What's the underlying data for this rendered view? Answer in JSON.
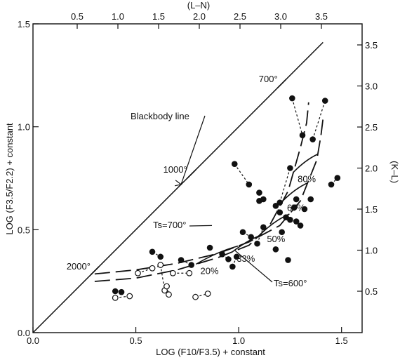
{
  "chart_data": {
    "type": "scatter",
    "x_axis": {
      "label": "LOG (F10/F3.5)  + constant",
      "range": [
        0.0,
        1.6
      ],
      "ticks": [
        "0.0",
        "0.5",
        "1.0",
        "1.5"
      ]
    },
    "y_axis": {
      "label": "LOG (F3.5/F2.2)  + constant",
      "range": [
        0.0,
        1.5
      ],
      "ticks": [
        "0.0",
        "0.5",
        "1.0",
        "1.5"
      ]
    },
    "top_axis": {
      "label": "(L–N)",
      "ticks": [
        "0.5",
        "1.0",
        "1.5",
        "2.0",
        "2.5",
        "3.0",
        "3.5"
      ]
    },
    "right_axis": {
      "label": "(K–L)",
      "ticks": [
        "0.5",
        "1.0",
        "1.5",
        "2.0",
        "2.5",
        "3.0",
        "3.5"
      ]
    },
    "grid": false,
    "blackbody_line": {
      "label": "Blackbody line",
      "points": [
        [
          0.0,
          0.0
        ],
        [
          1.41,
          1.41
        ]
      ],
      "temperature_labels": [
        {
          "label": "2000°",
          "x": 0.3,
          "y": 0.3
        },
        {
          "label": "1000°",
          "x": 0.77,
          "y": 0.77
        },
        {
          "label": "700°",
          "x": 1.21,
          "y": 1.21
        }
      ]
    },
    "model_curves": [
      {
        "label": "Ts=700°",
        "points": [
          [
            0.3,
            0.71
          ],
          [
            0.5,
            0.76
          ],
          [
            0.7,
            0.84
          ],
          [
            0.9,
            0.96
          ],
          [
            1.05,
            1.1
          ],
          [
            1.2,
            1.3
          ],
          [
            1.3,
            1.6
          ],
          [
            1.38,
            2.1
          ],
          [
            1.4,
            2.4
          ],
          [
            1.41,
            2.6
          ]
        ]
      },
      {
        "label": "Ts=600°",
        "points": [
          [
            0.3,
            0.62
          ],
          [
            0.5,
            0.66
          ],
          [
            0.7,
            0.76
          ],
          [
            0.9,
            0.91
          ],
          [
            1.05,
            1.06
          ],
          [
            1.15,
            1.3
          ],
          [
            1.24,
            1.72
          ],
          [
            1.3,
            2.25
          ],
          [
            1.33,
            2.55
          ],
          [
            1.34,
            2.8
          ]
        ]
      }
    ],
    "percent_labels": [
      {
        "label": "20%",
        "x": 0.87,
        "y": 0.93
      },
      {
        "label": "33%",
        "x": 1.0,
        "y": 1.08
      },
      {
        "label": "50%",
        "x": 1.12,
        "y": 1.32
      },
      {
        "label": "67%",
        "x": 1.26,
        "y": 1.7
      },
      {
        "label": "80%",
        "x": 1.36,
        "y": 2.05
      }
    ],
    "pointer_labels": [
      {
        "label": "Blackbody line",
        "target": [
          0.72,
          0.72
        ]
      },
      {
        "label": "Ts=700°",
        "target": [
          0.87,
          1.3
        ]
      },
      {
        "label": "Ts=600°",
        "target": [
          0.98,
          1.0
        ]
      }
    ],
    "filled_points": [
      [
        0.4,
        0.5
      ],
      [
        0.43,
        0.49
      ],
      [
        0.58,
        0.98
      ],
      [
        0.62,
        0.92
      ],
      [
        0.72,
        0.88
      ],
      [
        0.77,
        0.82
      ],
      [
        0.86,
        1.03
      ],
      [
        0.92,
        0.95
      ],
      [
        0.95,
        0.89
      ],
      [
        0.97,
        0.8
      ],
      [
        0.99,
        0.92
      ],
      [
        1.02,
        1.22
      ],
      [
        1.06,
        1.16
      ],
      [
        1.09,
        1.08
      ],
      [
        1.12,
        1.28
      ],
      [
        1.18,
        1.01
      ],
      [
        1.21,
        1.22
      ],
      [
        1.24,
        0.88
      ],
      [
        1.27,
        1.52
      ],
      [
        1.1,
        1.6
      ],
      [
        1.12,
        1.62
      ],
      [
        1.18,
        1.54
      ],
      [
        1.2,
        1.46
      ],
      [
        1.23,
        1.4
      ],
      [
        1.25,
        1.37
      ],
      [
        1.28,
        1.35
      ],
      [
        1.3,
        1.3
      ],
      [
        1.32,
        1.5
      ],
      [
        1.28,
        1.62
      ],
      [
        1.35,
        1.62
      ],
      [
        1.1,
        1.7
      ],
      [
        0.98,
        2.05
      ],
      [
        1.05,
        1.8
      ],
      [
        1.2,
        1.58
      ],
      [
        1.25,
        2.0
      ],
      [
        1.26,
        2.85
      ],
      [
        1.31,
        2.4
      ],
      [
        1.36,
        2.35
      ],
      [
        1.42,
        2.82
      ],
      [
        1.45,
        1.8
      ],
      [
        1.48,
        1.88
      ]
    ],
    "open_points": [
      [
        0.4,
        0.42
      ],
      [
        0.47,
        0.44
      ],
      [
        0.51,
        0.72
      ],
      [
        0.58,
        0.78
      ],
      [
        0.62,
        0.82
      ],
      [
        0.64,
        0.51
      ],
      [
        0.65,
        0.56
      ],
      [
        0.66,
        0.46
      ],
      [
        0.68,
        0.72
      ],
      [
        0.76,
        0.72
      ],
      [
        0.79,
        0.43
      ],
      [
        0.85,
        0.47
      ]
    ],
    "title": "",
    "legend": "none"
  }
}
